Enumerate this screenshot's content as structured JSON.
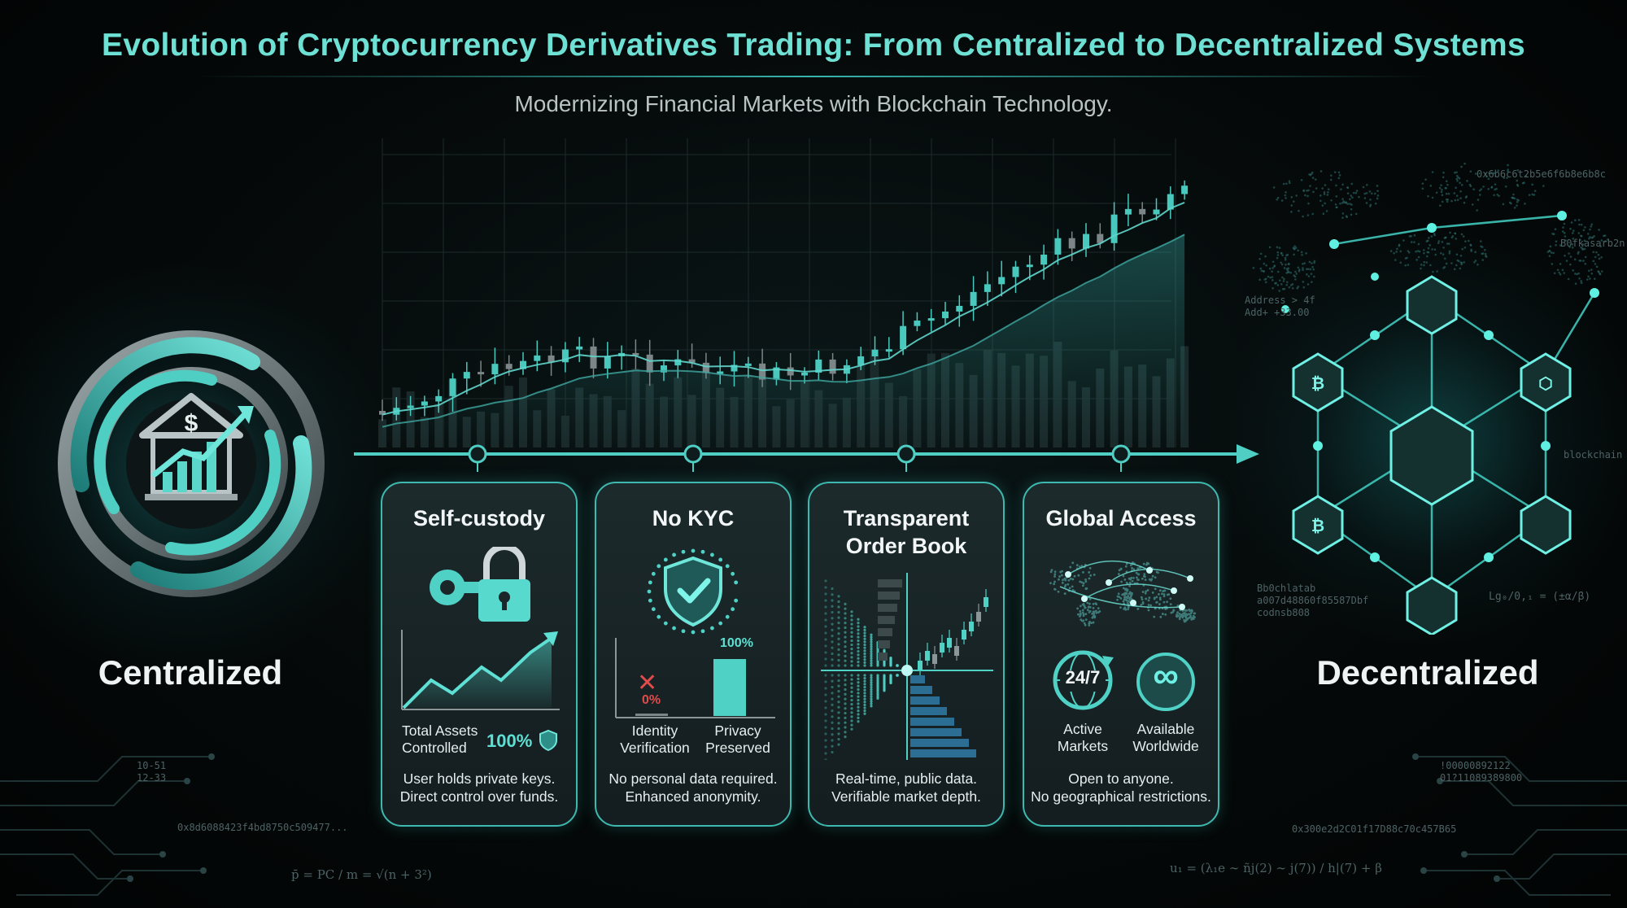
{
  "header": {
    "title": "Evolution of Cryptocurrency Derivatives Trading: From Centralized to Decentralized Systems",
    "subtitle": "Modernizing Financial Markets with Blockchain Technology."
  },
  "left": {
    "label": "Centralized",
    "icon": "bank-growth-emblem-icon"
  },
  "right": {
    "label": "Decentralized",
    "icon": "blockchain-network-icon"
  },
  "colors": {
    "accent": "#4fd1c5",
    "card_border": "#3fb9b0",
    "alert": "#e04b4b",
    "background": "#050909"
  },
  "cards": [
    {
      "title": "Self-custody",
      "icon": "key-lock-icon",
      "stat_label": "Total Assets Controlled",
      "stat_label_lines": [
        "Total Assets",
        "Controlled"
      ],
      "stat_value": "100%",
      "desc_lines": [
        "User holds private keys.",
        "Direct control over funds."
      ]
    },
    {
      "title": "No KYC",
      "icon": "shield-check-icon",
      "bars": [
        {
          "label_lines": [
            "Identity",
            "Verification"
          ],
          "value_label": "0%",
          "value": 0
        },
        {
          "label_lines": [
            "Privacy",
            "Preserved"
          ],
          "value_label": "100%",
          "value": 100
        }
      ],
      "desc_lines": [
        "No personal data required.",
        "Enhanced anonymity."
      ]
    },
    {
      "title_lines": [
        "Transparent",
        "Order Book"
      ],
      "icon": "order-book-depth-icon",
      "desc_lines": [
        "Real-time, public data.",
        "Verifiable market depth."
      ]
    },
    {
      "title": "Global Access",
      "icon": "world-map-icon",
      "badges": [
        {
          "value": "24/7",
          "label_lines": [
            "Active",
            "Markets"
          ],
          "icon": "globe-cycle-icon"
        },
        {
          "value": "∞",
          "label_lines": [
            "Available",
            "Worldwide"
          ],
          "icon": "infinity-icon"
        }
      ],
      "desc_lines": [
        "Open to anyone.",
        "No geographical restrictions."
      ]
    }
  ],
  "decor_text": {
    "top_right_hash": "0x6b6c6t2b5e6f6b8e6b8c",
    "node_hash": "B0fkasarb2n",
    "address_lines": [
      "Address > 4f",
      "Add+ +33.00"
    ],
    "blockchain_tag": "blockchain",
    "bottom_right_hash_lines": [
      "Bb0chlatab",
      "a007d48860f85587Dbf",
      "codnsb808"
    ],
    "formula_right": "Lg₀/0,₁ = (±α/β)",
    "left_small_lines": [
      "10-51",
      "12-33"
    ],
    "left_hash": "0x8d6088423f4bd8750c509477...",
    "right_small_lines": [
      "!00000892122",
      "01?11089389800"
    ],
    "right_hash": "0x300e2d2C01f17D88c70c457B65",
    "formula_left": "p̄ = PC / m = √(n + 3²)",
    "formula_bottom_right": "u₁ = (λ₁e ∼ ñj(2) ∼ j(7)) / h|(7) + β"
  }
}
